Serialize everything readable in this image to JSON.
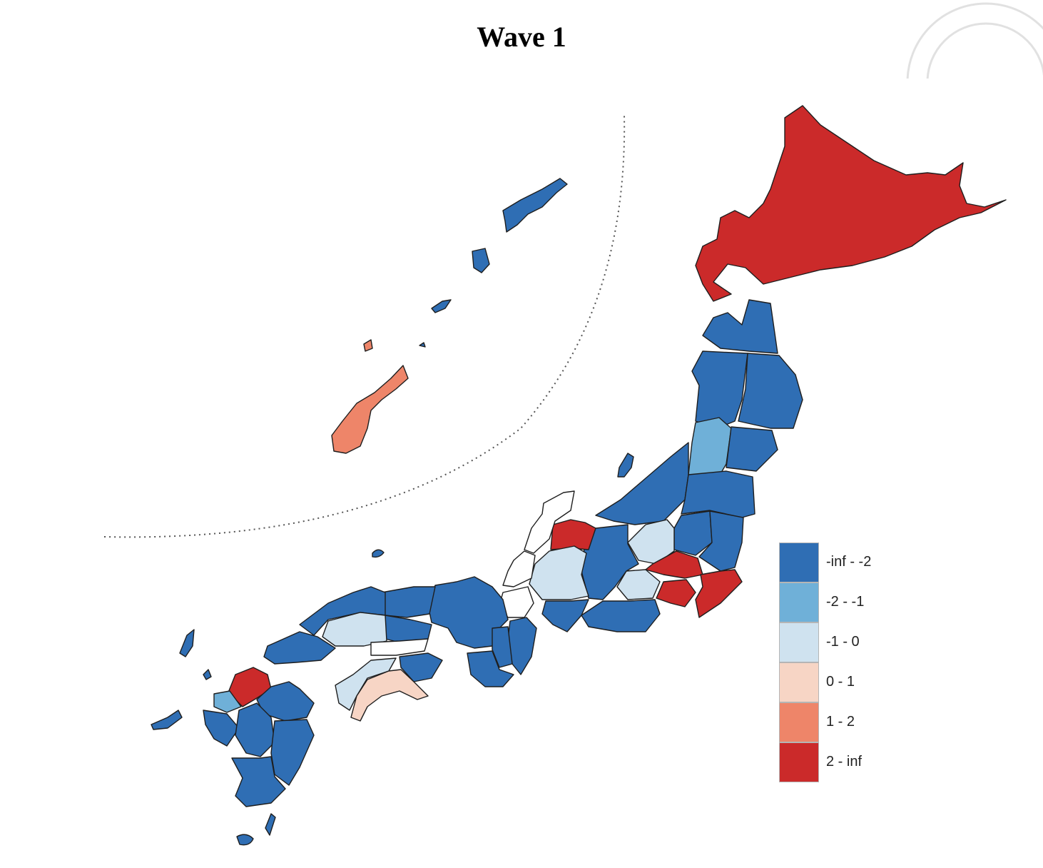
{
  "title": "Wave 1",
  "legend": {
    "items": [
      {
        "label": "-inf - -2",
        "color": "#2f6eb4"
      },
      {
        "label": "-2 - -1",
        "color": "#6fb0d8"
      },
      {
        "label": "-1 - 0",
        "color": "#cfe2ef"
      },
      {
        "label": "0 - 1",
        "color": "#f7d5c5"
      },
      {
        "label": "1 - 2",
        "color": "#ee8569"
      },
      {
        "label": "2 - inf",
        "color": "#cb2a2a"
      }
    ]
  },
  "colors": {
    "dark_blue": "#2f6eb4",
    "mid_blue": "#6fb0d8",
    "light_blue": "#cfe2ef",
    "light_pink": "#f7d5c5",
    "salmon": "#ee8569",
    "red": "#cb2a2a",
    "no_data": "#ffffff"
  },
  "regions": {
    "hokkaido": "2 - inf",
    "okinawa": "1 - 2",
    "amami_islands": "-inf - -2",
    "tokyo": "2 - inf",
    "kanagawa": "2 - inf",
    "chiba": "2 - inf",
    "saitama": "2 - inf",
    "toyama": "2 - inf",
    "osaka_hyogo_kyoto": "2 - inf",
    "fukuoka": "2 - inf",
    "yamagata": "-2 - -1",
    "saga": "-2 - -1",
    "gunma": "-1 - 0",
    "yamanashi": "-1 - 0",
    "gifu": "-1 - 0",
    "hiroshima": "-1 - 0",
    "ehime": "-1 - 0",
    "kochi": "0 - 1"
  },
  "seal_icon": "university-seal-icon"
}
